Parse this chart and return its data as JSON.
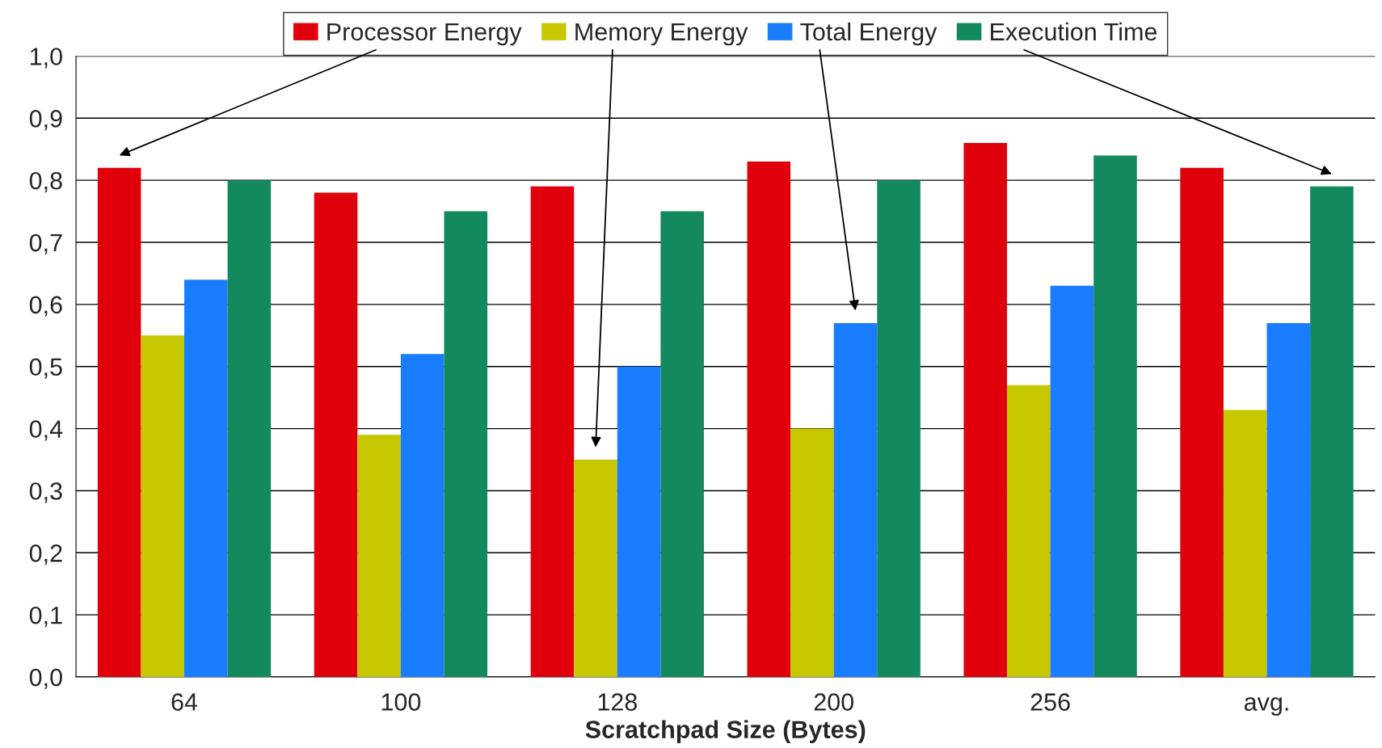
{
  "chart_data": {
    "type": "bar",
    "xlabel": "Scratchpad Size (Bytes)",
    "categories": [
      "64",
      "100",
      "128",
      "200",
      "256",
      "avg."
    ],
    "series": [
      {
        "name": "Processor Energy",
        "color": "#e0000c",
        "values": [
          0.82,
          0.78,
          0.79,
          0.83,
          0.86,
          0.82
        ]
      },
      {
        "name": "Memory Energy",
        "color": "#c8c800",
        "values": [
          0.55,
          0.39,
          0.35,
          0.4,
          0.47,
          0.43
        ]
      },
      {
        "name": "Total Energy",
        "color": "#1a7cff",
        "values": [
          0.64,
          0.52,
          0.5,
          0.57,
          0.63,
          0.57
        ]
      },
      {
        "name": "Execution Time",
        "color": "#138a5e",
        "values": [
          0.8,
          0.75,
          0.75,
          0.8,
          0.84,
          0.79
        ]
      }
    ],
    "ylim": [
      0,
      1
    ],
    "yticks": [
      {
        "value": 0,
        "label": "0,0"
      },
      {
        "value": 0.1,
        "label": "0,1"
      },
      {
        "value": 0.2,
        "label": "0,2"
      },
      {
        "value": 0.3,
        "label": "0,3"
      },
      {
        "value": 0.4,
        "label": "0,4"
      },
      {
        "value": 0.5,
        "label": "0,5"
      },
      {
        "value": 0.6,
        "label": "0,6"
      },
      {
        "value": 0.7,
        "label": "0,7"
      },
      {
        "value": 0.8,
        "label": "0,8"
      },
      {
        "value": 0.9,
        "label": "0,9"
      },
      {
        "value": 1.0,
        "label": "1,0"
      }
    ],
    "grid": "y",
    "legend": "top"
  }
}
